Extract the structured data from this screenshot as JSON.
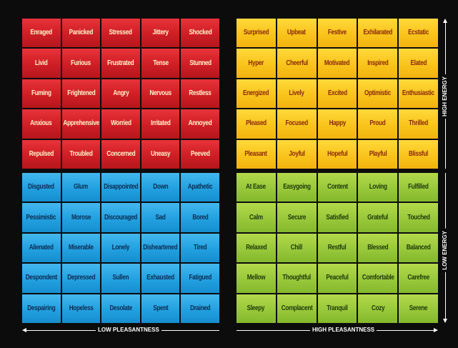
{
  "quadrants": {
    "high_energy_low_pleasantness": [
      [
        "Enraged",
        "Panicked",
        "Stressed",
        "Jittery",
        "Shocked"
      ],
      [
        "Livid",
        "Furious",
        "Frustrated",
        "Tense",
        "Stunned"
      ],
      [
        "Fuming",
        "Frightened",
        "Angry",
        "Nervous",
        "Restless"
      ],
      [
        "Anxious",
        "Apprehensive",
        "Worried",
        "Irritated",
        "Annoyed"
      ],
      [
        "Repulsed",
        "Troubled",
        "Concerned",
        "Uneasy",
        "Peeved"
      ]
    ],
    "high_energy_high_pleasantness": [
      [
        "Surprised",
        "Upbeat",
        "Festive",
        "Exhilarated",
        "Ecstatic"
      ],
      [
        "Hyper",
        "Cheerful",
        "Motivated",
        "Inspired",
        "Elated"
      ],
      [
        "Energized",
        "Lively",
        "Excited",
        "Optimistic",
        "Enthusiastic"
      ],
      [
        "Pleased",
        "Focused",
        "Happy",
        "Proud",
        "Thrilled"
      ],
      [
        "Pleasant",
        "Joyful",
        "Hopeful",
        "Playful",
        "Blissful"
      ]
    ],
    "low_energy_low_pleasantness": [
      [
        "Disgusted",
        "Glum",
        "Disappointed",
        "Down",
        "Apathetic"
      ],
      [
        "Pessimistic",
        "Morose",
        "Discouraged",
        "Sad",
        "Bored"
      ],
      [
        "Alienated",
        "Miserable",
        "Lonely",
        "Disheartened",
        "Tired"
      ],
      [
        "Despondent",
        "Depressed",
        "Sullen",
        "Exhausted",
        "Fatigued"
      ],
      [
        "Despairing",
        "Hopeless",
        "Desolate",
        "Spent",
        "Drained"
      ]
    ],
    "low_energy_high_pleasantness": [
      [
        "At Ease",
        "Easygoing",
        "Content",
        "Loving",
        "Fulfilled"
      ],
      [
        "Calm",
        "Secure",
        "Satisfied",
        "Grateful",
        "Touched"
      ],
      [
        "Relaxed",
        "Chill",
        "Restful",
        "Blessed",
        "Balanced"
      ],
      [
        "Mellow",
        "Thoughtful",
        "Peaceful",
        "Comfortable",
        "Carefree"
      ],
      [
        "Sleepy",
        "Complacent",
        "Tranquil",
        "Cozy",
        "Serene"
      ]
    ]
  },
  "axes": {
    "low_pleasantness": "LOW PLEASANTNESS",
    "high_pleasantness": "HIGH PLEASANTNESS",
    "high_energy": "HIGH ENERGY",
    "low_energy": "LOW ENERGY"
  },
  "colors": {
    "red": "#d9232a",
    "yellow": "#f9c41c",
    "blue": "#22a0e0",
    "green": "#98c83a"
  }
}
